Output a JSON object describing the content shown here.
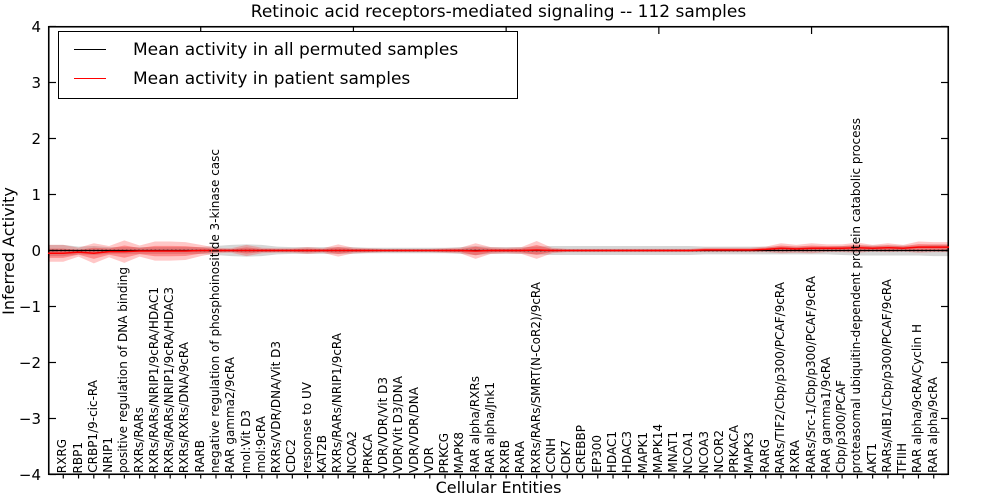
{
  "title": "Retinoic acid receptors-mediated signaling -- 112 samples",
  "axes": {
    "ylabel": "Inferred Activity",
    "xlabel": "Cellular Entities",
    "ytick_labels": [
      "4",
      "3",
      "2",
      "1",
      "0",
      "−1",
      "−2",
      "−3",
      "−4"
    ],
    "ytick_values": [
      4,
      3,
      2,
      1,
      0,
      -1,
      -2,
      -3,
      -4
    ]
  },
  "legend": {
    "entries": [
      {
        "label": "Mean activity in all permuted samples",
        "color": "#000000"
      },
      {
        "label": "Mean activity in patient samples",
        "color": "#ff0000"
      }
    ]
  },
  "chart_data": {
    "type": "line",
    "title": "Retinoic acid receptors-mediated signaling -- 112 samples",
    "xlabel": "Cellular Entities",
    "ylabel": "Inferred Activity",
    "ylim": [
      -4,
      4
    ],
    "xlim": [
      0,
      59
    ],
    "grid": false,
    "legend_position": "upper left",
    "xtick_top_values": [
      10,
      20,
      30,
      40,
      50
    ],
    "band_colors": {
      "permuted": "rgba(128,128,128,0.32)",
      "patient_outer": "rgba(255,0,0,0.22)",
      "patient_inner": "rgba(255,0,0,0.30)"
    },
    "zero_line_style": "dotted",
    "categories": [
      "RXRG",
      "RBP1",
      "CRBP1/9-cic-RA",
      "NRIP1",
      "positive regulation of DNA binding",
      "RXRs/RARs",
      "RXRs/RARs/NRIP1/9cRA/HDAC1",
      "RXRs/RARs/NRIP1/9cRA/HDAC3",
      "RXRs/RXRs/DNA/9cRA",
      "RARB",
      "negative regulation of phosphoinositide 3-kinase casc",
      "RAR gamma2/9cRA",
      "mol:Vit D3",
      "mol:9cRA",
      "RXRs/VDR/DNA/Vit D3",
      "CDC2",
      "response to UV",
      "KAT2B",
      "RXRs/RARs/NRIP1/9cRA",
      "NCOA2",
      "PRKCA",
      "VDR/VDR/Vit D3",
      "VDR/Vit D3/DNA",
      "VDR/VDR/DNA",
      "VDR",
      "PRKCG",
      "MAPK8",
      "RAR alpha/RXRs",
      "RAR alpha/Jnk1",
      "RXRB",
      "RARA",
      "RXRs/RARs/SMRT(N-CoR2)/9cRA",
      "CCNH",
      "CDK7",
      "CREBBP",
      "EP300",
      "HDAC1",
      "HDAC3",
      "MAPK1",
      "MAPK14",
      "MNAT1",
      "NCOA1",
      "NCOA3",
      "NCOR2",
      "PRKACA",
      "MAPK3",
      "RARG",
      "RARs/TIF2/Cbp/p300/PCAF/9cRA",
      "RXRA",
      "RARs/Src-1/Cbp/p300/PCAF/9cRA",
      "RAR gamma1/9cRA",
      "Cbp/p300/PCAF",
      "proteasomal ubiquitin-dependent protein catabolic process",
      "AKT1",
      "RARs/AIB1/Cbp/p300/PCAF/9cRA",
      "TFIIH",
      "RAR alpha/9cRA/Cyclin H",
      "RAR alpha/9cRA"
    ],
    "series": [
      {
        "name": "Mean activity in all permuted samples",
        "color": "#000000",
        "values": [
          0,
          0,
          0,
          0,
          0,
          0,
          0,
          0,
          0,
          0,
          0,
          0,
          0,
          0,
          0,
          0,
          0,
          0,
          0,
          0,
          0,
          0,
          0,
          0,
          0,
          0,
          0,
          0,
          0,
          0,
          0,
          0,
          0,
          0,
          0,
          0,
          0,
          0,
          0,
          0,
          0,
          0,
          0,
          0,
          0,
          0,
          0,
          0,
          0,
          0,
          0,
          0,
          0,
          0,
          0,
          0,
          0,
          0
        ],
        "std": [
          0.1,
          0.07,
          0.08,
          0.06,
          0.06,
          0.06,
          0.06,
          0.06,
          0.06,
          0.06,
          0.08,
          0.1,
          0.11,
          0.1,
          0.07,
          0.06,
          0.06,
          0.06,
          0.06,
          0.06,
          0.05,
          0.05,
          0.05,
          0.05,
          0.05,
          0.05,
          0.06,
          0.08,
          0.06,
          0.06,
          0.06,
          0.07,
          0.08,
          0.08,
          0.08,
          0.08,
          0.08,
          0.08,
          0.08,
          0.08,
          0.08,
          0.08,
          0.07,
          0.07,
          0.07,
          0.07,
          0.07,
          0.07,
          0.07,
          0.07,
          0.07,
          0.08,
          0.09,
          0.09,
          0.09,
          0.09,
          0.09,
          0.1
        ]
      },
      {
        "name": "Mean activity in patient samples",
        "color": "#ff0000",
        "values": [
          -0.05,
          -0.03,
          -0.05,
          -0.02,
          -0.02,
          -0.01,
          -0.01,
          -0.01,
          -0.01,
          0,
          0,
          0,
          0,
          0,
          0,
          0,
          0,
          0,
          0,
          0,
          0,
          0,
          0,
          0,
          0,
          0,
          0,
          -0.01,
          0,
          0,
          0,
          0.01,
          0,
          0,
          0,
          0,
          0,
          0,
          0,
          0,
          0,
          0,
          0.01,
          0.01,
          0.01,
          0.01,
          0.02,
          0.04,
          0.03,
          0.04,
          0.04,
          0.04,
          0.05,
          0.04,
          0.05,
          0.04,
          0.06,
          0.06
        ],
        "std": [
          0.15,
          0.08,
          0.18,
          0.1,
          0.2,
          0.1,
          0.17,
          0.17,
          0.16,
          0.1,
          0.05,
          0.04,
          0.1,
          0.05,
          0.04,
          0.04,
          0.06,
          0.04,
          0.11,
          0.05,
          0.04,
          0.03,
          0.03,
          0.03,
          0.03,
          0.04,
          0.05,
          0.14,
          0.06,
          0.05,
          0.06,
          0.16,
          0.05,
          0.03,
          0.03,
          0.03,
          0.03,
          0.03,
          0.03,
          0.03,
          0.03,
          0.03,
          0.04,
          0.04,
          0.04,
          0.04,
          0.05,
          0.09,
          0.07,
          0.09,
          0.07,
          0.07,
          0.09,
          0.06,
          0.08,
          0.06,
          0.1,
          0.09
        ]
      }
    ]
  }
}
